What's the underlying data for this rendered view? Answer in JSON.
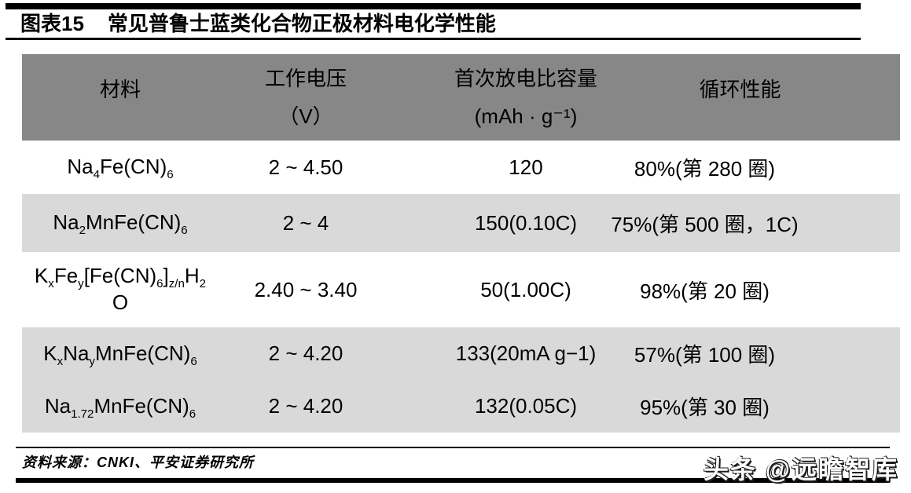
{
  "figure": {
    "label": "图表15",
    "title": "常见普鲁士蓝类化合物正极材料电化学性能"
  },
  "table": {
    "columns": [
      {
        "title": "材料",
        "unit": ""
      },
      {
        "title": "工作电压",
        "unit": "（V）"
      },
      {
        "title": "首次放电比容量",
        "unit": "(mAh · g⁻¹)"
      },
      {
        "title": "循环性能",
        "unit": ""
      }
    ],
    "rows": [
      {
        "material": [
          {
            "t": "Na"
          },
          {
            "sub": "4"
          },
          {
            "t": "Fe(CN)"
          },
          {
            "sub": "6"
          }
        ],
        "voltage": "2 ~ 4.50",
        "capacity": "120",
        "cycle": "80%(第 280 圈)"
      },
      {
        "material": [
          {
            "t": "Na"
          },
          {
            "sub": "2"
          },
          {
            "t": "MnFe(CN)"
          },
          {
            "sub": "6"
          }
        ],
        "voltage": "2 ~ 4",
        "capacity": "150(0.10C)",
        "cycle": "75%(第 500 圈，1C)"
      },
      {
        "material": [
          {
            "t": "K"
          },
          {
            "sub": "x"
          },
          {
            "t": "Fe"
          },
          {
            "sub": "y"
          },
          {
            "t": "[Fe(CN)"
          },
          {
            "sub": "6"
          },
          {
            "t": "]"
          },
          {
            "sub": "z/n"
          },
          {
            "t": "H"
          },
          {
            "sub": "2"
          },
          {
            "br": true
          },
          {
            "t": "O"
          }
        ],
        "voltage": "2.40 ~ 3.40",
        "capacity": "50(1.00C)",
        "cycle": "98%(第 20 圈)"
      },
      {
        "material": [
          {
            "t": "K"
          },
          {
            "sub": "x"
          },
          {
            "t": "Na"
          },
          {
            "sub": "y"
          },
          {
            "t": "MnFe(CN)"
          },
          {
            "sub": "6"
          }
        ],
        "voltage": "2 ~ 4.20",
        "capacity": "133(20mA g−1)",
        "cycle": "57%(第 100 圈)"
      },
      {
        "material": [
          {
            "t": "Na"
          },
          {
            "sub": "1.72"
          },
          {
            "t": "MnFe(CN)"
          },
          {
            "sub": "6"
          }
        ],
        "voltage": "2 ~ 4.20",
        "capacity": "132(0.05C)",
        "cycle": "95%(第 30 圈)"
      }
    ]
  },
  "footer": {
    "source": "资料来源：CNKI、平安证券研究所"
  },
  "watermark": {
    "text": "头条 @远瞻智库"
  },
  "colors": {
    "header_bg": "#878787",
    "row_alt_bg": "#d9d9d9",
    "rule": "#000000",
    "text": "#000000",
    "watermark_fill": "#ffffff",
    "watermark_edge": "#1c1c1c"
  }
}
